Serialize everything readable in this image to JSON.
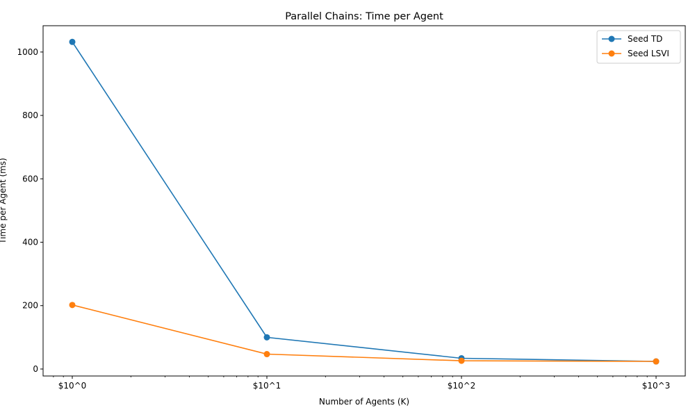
{
  "chart_data": {
    "type": "line",
    "title": "Parallel Chains: Time per Agent",
    "xlabel": "Number of Agents (K)",
    "ylabel": "Time per Agent (ms)",
    "xscale": "log",
    "x": [
      1,
      10,
      100,
      1000
    ],
    "xticks": [
      1,
      10,
      100,
      1000
    ],
    "xtick_labels": [
      "$10^0",
      "$10^1",
      "$10^2",
      "$10^3"
    ],
    "yticks": [
      0,
      200,
      400,
      600,
      800,
      1000
    ],
    "ytick_labels": [
      "0",
      "200",
      "400",
      "600",
      "800",
      "1000"
    ],
    "ylim": [
      -22,
      1083
    ],
    "xlim": [
      0.7079,
      1412.5
    ],
    "grid": false,
    "legend_position": "top-right",
    "series": [
      {
        "name": "Seed TD",
        "color": "#1f77b4",
        "marker": "circle",
        "values": [
          1032,
          100,
          34,
          24
        ]
      },
      {
        "name": "Seed LSVI",
        "color": "#ff7f0e",
        "marker": "circle",
        "values": [
          202,
          47,
          26,
          24
        ]
      }
    ]
  }
}
